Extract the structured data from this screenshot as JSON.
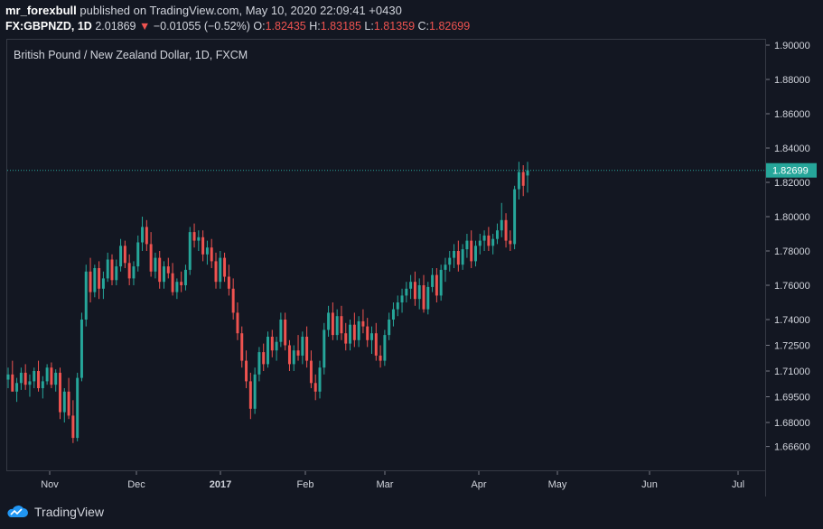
{
  "header": {
    "user": "mr_forexbull",
    "published_text": "published on TradingView.com, May 10, 2020 22:09:41 +0430",
    "symbol": "FX:GBPNZD, 1D",
    "price": "2.01869",
    "change": "−0.01055 (−0.52%)",
    "o_label": "O:",
    "o_value": "1.82435",
    "h_label": "H:",
    "h_value": "1.83185",
    "l_label": "L:",
    "l_value": "1.81359",
    "c_label": "C:",
    "c_value": "1.82699"
  },
  "footer": {
    "brand": "TradingView"
  },
  "colors": {
    "bg": "#131722",
    "up": "#26a69a",
    "down": "#ef5350",
    "text": "#d1d4dc"
  },
  "chart_data": {
    "type": "candlestick",
    "title": "British Pound / New Zealand Dollar, 1D, FXCM",
    "current_price": 1.82699,
    "current_price_label": "1.82699",
    "y_ticks": [
      "1.90000",
      "1.88000",
      "1.86000",
      "1.84000",
      "1.82000",
      "1.80000",
      "1.78000",
      "1.76000",
      "1.74000",
      "1.72500",
      "1.71000",
      "1.69500",
      "1.68000",
      "1.66600"
    ],
    "x_ticks": [
      "Nov",
      "Dec",
      "2017",
      "Feb",
      "Mar",
      "Apr",
      "May",
      "Jun",
      "Jul"
    ],
    "ylim": [
      1.655,
      1.905
    ],
    "candles": [
      [
        1.705,
        1.712,
        1.7,
        1.708
      ],
      [
        1.708,
        1.716,
        1.7,
        1.698
      ],
      [
        1.698,
        1.706,
        1.692,
        1.703
      ],
      [
        1.703,
        1.712,
        1.699,
        1.709
      ],
      [
        1.709,
        1.714,
        1.699,
        1.702
      ],
      [
        1.702,
        1.708,
        1.695,
        1.704
      ],
      [
        1.704,
        1.712,
        1.7,
        1.71
      ],
      [
        1.71,
        1.716,
        1.698,
        1.7
      ],
      [
        1.7,
        1.707,
        1.694,
        1.704
      ],
      [
        1.704,
        1.714,
        1.702,
        1.712
      ],
      [
        1.712,
        1.715,
        1.7,
        1.702
      ],
      [
        1.702,
        1.711,
        1.698,
        1.709
      ],
      [
        1.709,
        1.712,
        1.682,
        1.686
      ],
      [
        1.686,
        1.7,
        1.68,
        1.698
      ],
      [
        1.698,
        1.706,
        1.682,
        1.684
      ],
      [
        1.684,
        1.693,
        1.668,
        1.671
      ],
      [
        1.671,
        1.709,
        1.669,
        1.706
      ],
      [
        1.706,
        1.744,
        1.704,
        1.74
      ],
      [
        1.74,
        1.772,
        1.736,
        1.768
      ],
      [
        1.768,
        1.776,
        1.75,
        1.756
      ],
      [
        1.756,
        1.772,
        1.753,
        1.77
      ],
      [
        1.77,
        1.774,
        1.752,
        1.758
      ],
      [
        1.758,
        1.768,
        1.752,
        1.764
      ],
      [
        1.764,
        1.779,
        1.762,
        1.775
      ],
      [
        1.775,
        1.778,
        1.76,
        1.763
      ],
      [
        1.763,
        1.775,
        1.76,
        1.771
      ],
      [
        1.771,
        1.787,
        1.768,
        1.783
      ],
      [
        1.783,
        1.786,
        1.77,
        1.773
      ],
      [
        1.773,
        1.778,
        1.76,
        1.764
      ],
      [
        1.764,
        1.774,
        1.76,
        1.771
      ],
      [
        1.771,
        1.789,
        1.768,
        1.785
      ],
      [
        1.785,
        1.8,
        1.78,
        1.794
      ],
      [
        1.794,
        1.798,
        1.78,
        1.784
      ],
      [
        1.784,
        1.791,
        1.765,
        1.768
      ],
      [
        1.768,
        1.779,
        1.764,
        1.776
      ],
      [
        1.776,
        1.78,
        1.758,
        1.762
      ],
      [
        1.762,
        1.774,
        1.758,
        1.771
      ],
      [
        1.771,
        1.776,
        1.764,
        1.767
      ],
      [
        1.767,
        1.773,
        1.754,
        1.756
      ],
      [
        1.756,
        1.764,
        1.752,
        1.762
      ],
      [
        1.762,
        1.768,
        1.756,
        1.76
      ],
      [
        1.76,
        1.772,
        1.757,
        1.769
      ],
      [
        1.769,
        1.794,
        1.766,
        1.791
      ],
      [
        1.791,
        1.796,
        1.782,
        1.786
      ],
      [
        1.786,
        1.792,
        1.78,
        1.788
      ],
      [
        1.788,
        1.792,
        1.774,
        1.778
      ],
      [
        1.778,
        1.786,
        1.772,
        1.782
      ],
      [
        1.782,
        1.787,
        1.77,
        1.774
      ],
      [
        1.774,
        1.779,
        1.758,
        1.762
      ],
      [
        1.762,
        1.78,
        1.758,
        1.776
      ],
      [
        1.776,
        1.779,
        1.762,
        1.765
      ],
      [
        1.765,
        1.772,
        1.754,
        1.758
      ],
      [
        1.758,
        1.764,
        1.74,
        1.744
      ],
      [
        1.744,
        1.75,
        1.728,
        1.732
      ],
      [
        1.732,
        1.736,
        1.712,
        1.716
      ],
      [
        1.716,
        1.722,
        1.7,
        1.704
      ],
      [
        1.704,
        1.709,
        1.682,
        1.688
      ],
      [
        1.688,
        1.712,
        1.685,
        1.708
      ],
      [
        1.708,
        1.724,
        1.704,
        1.721
      ],
      [
        1.721,
        1.726,
        1.71,
        1.714
      ],
      [
        1.714,
        1.733,
        1.712,
        1.73
      ],
      [
        1.73,
        1.734,
        1.718,
        1.722
      ],
      [
        1.722,
        1.73,
        1.716,
        1.727
      ],
      [
        1.727,
        1.744,
        1.724,
        1.74
      ],
      [
        1.74,
        1.744,
        1.722,
        1.725
      ],
      [
        1.725,
        1.728,
        1.71,
        1.714
      ],
      [
        1.714,
        1.725,
        1.71,
        1.722
      ],
      [
        1.722,
        1.731,
        1.716,
        1.719
      ],
      [
        1.719,
        1.733,
        1.714,
        1.73
      ],
      [
        1.73,
        1.736,
        1.712,
        1.716
      ],
      [
        1.716,
        1.722,
        1.7,
        1.703
      ],
      [
        1.703,
        1.708,
        1.693,
        1.698
      ],
      [
        1.698,
        1.716,
        1.694,
        1.712
      ],
      [
        1.712,
        1.738,
        1.708,
        1.734
      ],
      [
        1.734,
        1.748,
        1.73,
        1.744
      ],
      [
        1.744,
        1.75,
        1.728,
        1.731
      ],
      [
        1.731,
        1.746,
        1.728,
        1.742
      ],
      [
        1.742,
        1.748,
        1.728,
        1.732
      ],
      [
        1.732,
        1.738,
        1.722,
        1.726
      ],
      [
        1.726,
        1.74,
        1.722,
        1.737
      ],
      [
        1.737,
        1.744,
        1.724,
        1.728
      ],
      [
        1.728,
        1.742,
        1.724,
        1.739
      ],
      [
        1.739,
        1.746,
        1.732,
        1.736
      ],
      [
        1.736,
        1.741,
        1.724,
        1.728
      ],
      [
        1.728,
        1.736,
        1.72,
        1.732
      ],
      [
        1.732,
        1.738,
        1.716,
        1.719
      ],
      [
        1.719,
        1.725,
        1.712,
        1.716
      ],
      [
        1.716,
        1.734,
        1.713,
        1.731
      ],
      [
        1.731,
        1.744,
        1.728,
        1.74
      ],
      [
        1.74,
        1.75,
        1.736,
        1.746
      ],
      [
        1.746,
        1.754,
        1.742,
        1.75
      ],
      [
        1.75,
        1.758,
        1.744,
        1.754
      ],
      [
        1.754,
        1.762,
        1.75,
        1.758
      ],
      [
        1.758,
        1.766,
        1.752,
        1.762
      ],
      [
        1.762,
        1.768,
        1.748,
        1.752
      ],
      [
        1.752,
        1.764,
        1.746,
        1.76
      ],
      [
        1.76,
        1.766,
        1.744,
        1.746
      ],
      [
        1.746,
        1.762,
        1.743,
        1.759
      ],
      [
        1.759,
        1.77,
        1.756,
        1.766
      ],
      [
        1.766,
        1.77,
        1.75,
        1.754
      ],
      [
        1.754,
        1.772,
        1.751,
        1.769
      ],
      [
        1.769,
        1.776,
        1.762,
        1.772
      ],
      [
        1.772,
        1.78,
        1.768,
        1.776
      ],
      [
        1.776,
        1.784,
        1.77,
        1.78
      ],
      [
        1.78,
        1.786,
        1.768,
        1.772
      ],
      [
        1.772,
        1.784,
        1.769,
        1.781
      ],
      [
        1.781,
        1.79,
        1.776,
        1.786
      ],
      [
        1.786,
        1.792,
        1.77,
        1.774
      ],
      [
        1.774,
        1.786,
        1.771,
        1.783
      ],
      [
        1.783,
        1.79,
        1.778,
        1.786
      ],
      [
        1.786,
        1.792,
        1.78,
        1.789
      ],
      [
        1.789,
        1.794,
        1.78,
        1.783
      ],
      [
        1.783,
        1.79,
        1.778,
        1.787
      ],
      [
        1.787,
        1.796,
        1.784,
        1.792
      ],
      [
        1.792,
        1.808,
        1.788,
        1.798
      ],
      [
        1.798,
        1.802,
        1.782,
        1.786
      ],
      [
        1.786,
        1.792,
        1.78,
        1.784
      ],
      [
        1.784,
        1.818,
        1.781,
        1.816
      ],
      [
        1.816,
        1.832,
        1.81,
        1.826
      ],
      [
        1.826,
        1.83,
        1.812,
        1.818
      ],
      [
        1.824,
        1.832,
        1.814,
        1.827
      ]
    ]
  }
}
